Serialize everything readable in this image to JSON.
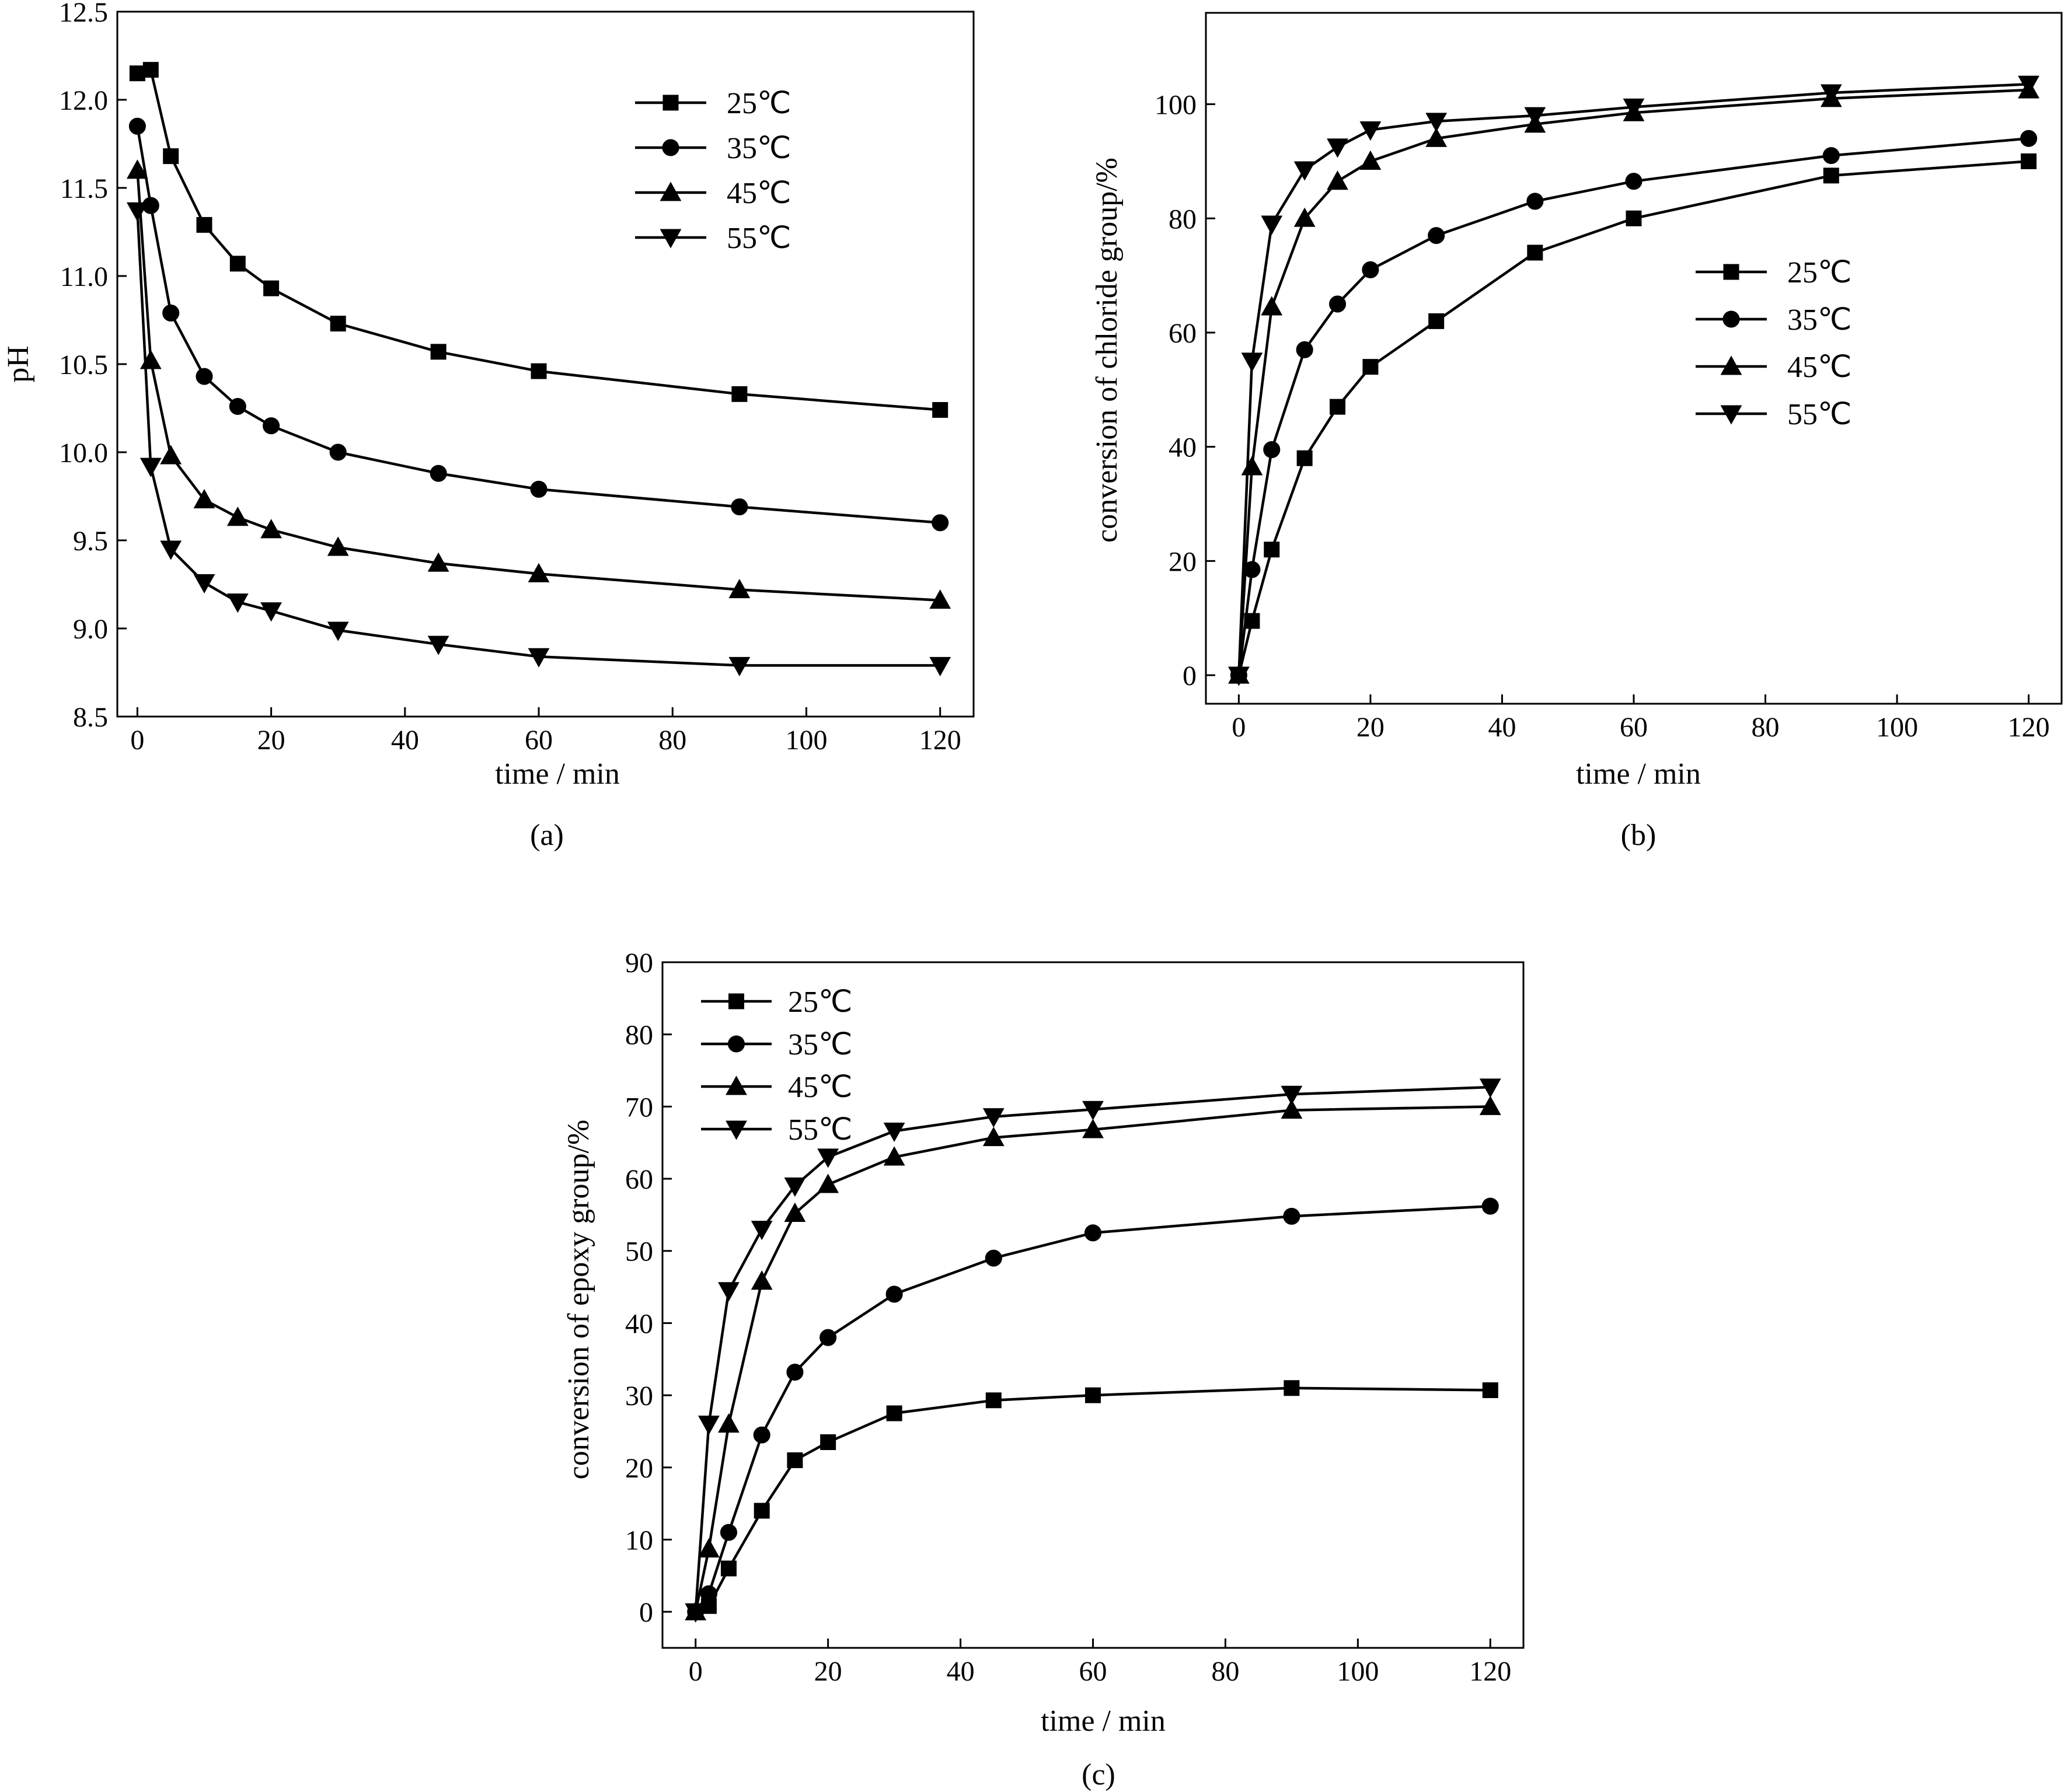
{
  "chart_data": [
    {
      "id": "a",
      "type": "line",
      "caption": "(a)",
      "xlabel": "time / min",
      "ylabel": "pH",
      "xlim": [
        -3,
        125
      ],
      "ylim": [
        8.5,
        12.5
      ],
      "xticks": [
        0,
        20,
        40,
        60,
        80,
        100,
        120
      ],
      "yticks": [
        8.5,
        9.0,
        9.5,
        10.0,
        10.5,
        11.0,
        11.5,
        12.0,
        12.5
      ],
      "yticklabels": [
        "8.5",
        "9.0",
        "9.5",
        "10.0",
        "10.5",
        "11.0",
        "11.5",
        "12.0",
        "12.5"
      ],
      "x": [
        0,
        2,
        5,
        10,
        15,
        20,
        30,
        45,
        60,
        90,
        120
      ],
      "legend_position": "top-right",
      "series": [
        {
          "name": "25℃",
          "marker": "square",
          "values": [
            12.15,
            12.17,
            11.68,
            11.29,
            11.07,
            10.93,
            10.73,
            10.57,
            10.46,
            10.33,
            10.24
          ]
        },
        {
          "name": "35℃",
          "marker": "circle",
          "values": [
            11.85,
            11.4,
            10.79,
            10.43,
            10.26,
            10.15,
            10.0,
            9.88,
            9.79,
            9.69,
            9.6
          ]
        },
        {
          "name": "45℃",
          "marker": "triangle-up",
          "values": [
            11.6,
            10.52,
            9.98,
            9.73,
            9.63,
            9.56,
            9.46,
            9.37,
            9.31,
            9.22,
            9.16
          ]
        },
        {
          "name": "55℃",
          "marker": "triangle-down",
          "values": [
            11.37,
            9.92,
            9.45,
            9.26,
            9.15,
            9.1,
            8.99,
            8.91,
            8.84,
            8.79,
            8.79
          ]
        }
      ]
    },
    {
      "id": "b",
      "type": "line",
      "caption": "(b)",
      "xlabel": "time / min",
      "ylabel": "conversion of chloride group/%",
      "xlim": [
        -5,
        125
      ],
      "ylim": [
        -5,
        116
      ],
      "xticks": [
        0,
        20,
        40,
        60,
        80,
        100,
        120
      ],
      "yticks": [
        0,
        20,
        40,
        60,
        80,
        100
      ],
      "yticklabels": [
        "0",
        "20",
        "40",
        "60",
        "80",
        "100"
      ],
      "x": [
        0,
        2,
        5,
        10,
        15,
        20,
        30,
        45,
        60,
        90,
        120
      ],
      "legend_position": "center-right",
      "series": [
        {
          "name": "25℃",
          "marker": "square",
          "values": [
            0,
            9.5,
            22,
            38,
            47,
            54,
            62,
            74,
            80,
            87.5,
            90
          ]
        },
        {
          "name": "35℃",
          "marker": "circle",
          "values": [
            0,
            18.5,
            39.5,
            57,
            65,
            71,
            77,
            83,
            86.5,
            91,
            94
          ]
        },
        {
          "name": "45℃",
          "marker": "triangle-up",
          "values": [
            0,
            36.5,
            64.5,
            80,
            86.5,
            90,
            94,
            96.5,
            98.5,
            101,
            102.5
          ]
        },
        {
          "name": "55℃",
          "marker": "triangle-down",
          "values": [
            0,
            55,
            79,
            88.5,
            92.5,
            95.5,
            97,
            98,
            99.5,
            102,
            103.5
          ]
        }
      ]
    },
    {
      "id": "c",
      "type": "line",
      "caption": "(c)",
      "xlabel": "time / min",
      "ylabel": "conversion of epoxy group/%",
      "xlim": [
        -5,
        125
      ],
      "ylim": [
        -5,
        90
      ],
      "xticks": [
        0,
        20,
        40,
        60,
        80,
        100,
        120
      ],
      "yticks": [
        0,
        10,
        20,
        30,
        40,
        50,
        60,
        70,
        80,
        90
      ],
      "yticklabels": [
        "0",
        "10",
        "20",
        "30",
        "40",
        "50",
        "60",
        "70",
        "80",
        "90"
      ],
      "x": [
        0,
        2,
        5,
        10,
        15,
        20,
        30,
        45,
        60,
        90,
        120
      ],
      "legend_position": "top-left",
      "series": [
        {
          "name": "25℃",
          "marker": "square",
          "values": [
            0,
            0.8,
            6,
            14,
            21,
            23.5,
            27.5,
            29.3,
            30,
            31,
            30.7
          ]
        },
        {
          "name": "35℃",
          "marker": "circle",
          "values": [
            0,
            2.5,
            11,
            24.5,
            33.2,
            38,
            44,
            49,
            52.5,
            54.8,
            56.2
          ]
        },
        {
          "name": "45℃",
          "marker": "triangle-up",
          "values": [
            0,
            8.7,
            26,
            45.8,
            55.2,
            59.2,
            63,
            65.7,
            66.8,
            69.5,
            70
          ]
        },
        {
          "name": "55℃",
          "marker": "triangle-down",
          "values": [
            0,
            26,
            44.5,
            53,
            59,
            63,
            66.6,
            68.6,
            69.6,
            71.7,
            72.7
          ]
        }
      ]
    }
  ]
}
